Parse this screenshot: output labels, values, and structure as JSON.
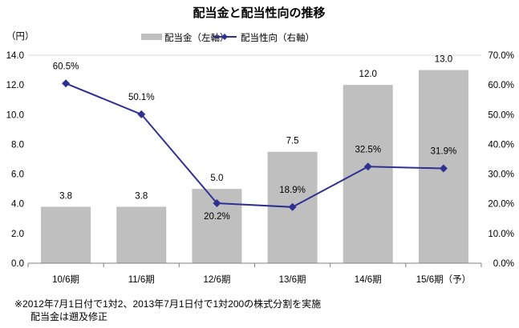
{
  "chart_data": {
    "type": "bar+line",
    "title": "配当金と配当性向の推移",
    "ylabel": "（円）",
    "categories": [
      "10/6期",
      "11/6期",
      "12/6期",
      "13/6期",
      "14/6期",
      "15/6期（予）"
    ],
    "series": [
      {
        "name": "配当金（左軸）",
        "type": "bar",
        "axis": "left",
        "color": "#bfbfbf",
        "values": [
          3.8,
          3.8,
          5.0,
          7.5,
          12.0,
          13.0
        ],
        "labels": [
          "3.8",
          "3.8",
          "5.0",
          "7.5",
          "12.0",
          "13.0"
        ]
      },
      {
        "name": "配当性向（右軸）",
        "type": "line",
        "axis": "right",
        "color": "#2e3192",
        "values": [
          60.5,
          50.1,
          20.2,
          18.9,
          32.5,
          31.9
        ],
        "labels": [
          "60.5%",
          "50.1%",
          "20.2%",
          "18.9%",
          "32.5%",
          "31.9%"
        ]
      }
    ],
    "ylim_left": [
      0,
      14
    ],
    "ylim_right": [
      0,
      70
    ],
    "left_ticks": [
      "0.0",
      "2.0",
      "4.0",
      "6.0",
      "8.0",
      "10.0",
      "12.0",
      "14.0"
    ],
    "right_ticks": [
      "0.0%",
      "10.0%",
      "20.0%",
      "30.0%",
      "40.0%",
      "50.0%",
      "60.0%",
      "70.0%"
    ],
    "legend_position": "top-center",
    "notes": [
      "※2012年7月1日付で1対2、2013年7月1日付で1対200の株式分割を実施",
      "配当金は遡及修正"
    ]
  }
}
